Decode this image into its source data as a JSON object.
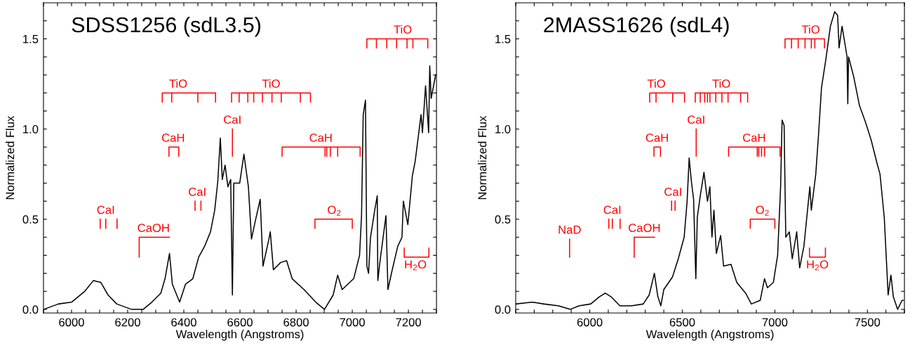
{
  "chart_data": [
    {
      "type": "line",
      "title": "SDSS1256 (sdL3.5)",
      "xlabel": "Wavelength (Angstroms)",
      "ylabel": "Normalized Flux",
      "xlim": [
        5900,
        7300
      ],
      "ylim": [
        -0.02,
        1.7
      ],
      "xticks": [
        {
          "value": 5900,
          "label": null
        },
        {
          "value": 5950,
          "label": null
        },
        6000,
        {
          "value": 6050,
          "label": null
        },
        {
          "value": 6100,
          "label": null
        },
        {
          "value": 6150,
          "label": null
        },
        6200,
        {
          "value": 6250,
          "label": null
        },
        {
          "value": 6300,
          "label": null
        },
        {
          "value": 6350,
          "label": null
        },
        6400,
        {
          "value": 6450,
          "label": null
        },
        {
          "value": 6500,
          "label": null
        },
        {
          "value": 6550,
          "label": null
        },
        6600,
        {
          "value": 6650,
          "label": null
        },
        {
          "value": 6700,
          "label": null
        },
        {
          "value": 6750,
          "label": null
        },
        6800,
        {
          "value": 6850,
          "label": null
        },
        {
          "value": 6900,
          "label": null
        },
        {
          "value": 6950,
          "label": null
        },
        7000,
        {
          "value": 7050,
          "label": null
        },
        {
          "value": 7100,
          "label": null
        },
        {
          "value": 7150,
          "label": null
        },
        7200,
        {
          "value": 7250,
          "label": null
        },
        {
          "value": 7300,
          "label": null
        }
      ],
      "yticks": [
        {
          "value": 0,
          "label": "0.0"
        },
        {
          "value": 0.1,
          "label": null
        },
        {
          "value": 0.2,
          "label": null
        },
        {
          "value": 0.3,
          "label": null
        },
        {
          "value": 0.4,
          "label": null
        },
        {
          "value": 0.5,
          "label": "0.5"
        },
        {
          "value": 0.6,
          "label": null
        },
        {
          "value": 0.7,
          "label": null
        },
        {
          "value": 0.8,
          "label": null
        },
        {
          "value": 0.9,
          "label": null
        },
        {
          "value": 1.0,
          "label": "1.0"
        },
        {
          "value": 1.1,
          "label": null
        },
        {
          "value": 1.2,
          "label": null
        },
        {
          "value": 1.3,
          "label": null
        },
        {
          "value": 1.4,
          "label": null
        },
        {
          "value": 1.5,
          "label": "1.5"
        },
        {
          "value": 1.6,
          "label": null
        }
      ],
      "series": [
        {
          "color": "#000000",
          "x": [
            5901,
            5953,
            6000,
            6047,
            6078,
            6104,
            6130,
            6161,
            6214,
            6255,
            6286,
            6318,
            6333,
            6349,
            6359,
            6385,
            6406,
            6432,
            6453,
            6474,
            6495,
            6510,
            6521,
            6530,
            6537,
            6547,
            6557,
            6567,
            6573,
            6578,
            6599,
            6614,
            6630,
            6641,
            6656,
            6672,
            6682,
            6703,
            6708,
            6719,
            6745,
            6766,
            6786,
            6828,
            6870,
            6901,
            6932,
            6948,
            6964,
            7005,
            7026,
            7033,
            7039,
            7047,
            7052,
            7058,
            7065,
            7080,
            7089,
            7091,
            7099,
            7120,
            7127,
            7141,
            7162,
            7177,
            7182,
            7198,
            7214,
            7224,
            7245,
            7250,
            7261,
            7272,
            7276,
            7281,
            7297
          ],
          "values": [
            0.0,
            0.03,
            0.04,
            0.1,
            0.16,
            0.15,
            0.08,
            0.03,
            0.0,
            0.0,
            0.04,
            0.09,
            0.17,
            0.31,
            0.14,
            0.04,
            0.14,
            0.17,
            0.29,
            0.35,
            0.43,
            0.55,
            0.71,
            0.95,
            0.72,
            0.8,
            0.68,
            0.72,
            0.08,
            0.7,
            0.7,
            0.86,
            0.68,
            0.39,
            0.5,
            0.61,
            0.24,
            0.39,
            0.43,
            0.22,
            0.26,
            0.27,
            0.17,
            0.11,
            0.04,
            0.0,
            0.08,
            0.19,
            0.11,
            0.17,
            0.3,
            0.52,
            1.08,
            1.16,
            0.24,
            0.2,
            0.4,
            0.55,
            0.63,
            0.16,
            0.27,
            0.52,
            0.11,
            0.21,
            0.35,
            0.4,
            0.6,
            0.47,
            0.74,
            0.82,
            1.08,
            0.98,
            1.24,
            0.98,
            1.35,
            1.17,
            1.3
          ]
        },
        {
          "color": "#ff0000",
          "x": [
            7052,
            7052,
            7269,
            7269,
            null,
            7086,
            7086,
            null,
            7123,
            7123,
            null,
            7158,
            7158,
            null,
            7195,
            7195,
            null,
            7216,
            7216
          ],
          "values": [
            1.45,
            1.5,
            1.5,
            1.45,
            null,
            1.5,
            1.45,
            null,
            1.5,
            1.45,
            null,
            1.5,
            1.45,
            null,
            1.5,
            1.45,
            null,
            1.5,
            1.45
          ]
        },
        {
          "color": "#ff0000",
          "x": [
            6323,
            6323,
            6513,
            6513,
            null,
            6357,
            6357,
            null,
            6450,
            6450
          ],
          "values": [
            1.15,
            1.2,
            1.2,
            1.15,
            null,
            1.2,
            1.15,
            null,
            1.2,
            1.15
          ]
        },
        {
          "color": "#ff0000",
          "x": [
            6570,
            6570,
            6851,
            6851,
            null,
            6597,
            6597,
            null,
            6628,
            6628,
            null,
            6649,
            6649,
            null,
            6680,
            6680,
            null,
            6714,
            6714,
            null,
            6747,
            6747,
            null,
            6815,
            6815
          ],
          "values": [
            1.15,
            1.2,
            1.2,
            1.15,
            null,
            1.2,
            1.15,
            null,
            1.2,
            1.15,
            null,
            1.2,
            1.15,
            null,
            1.2,
            1.15,
            null,
            1.2,
            1.15,
            null,
            1.2,
            1.15,
            null,
            1.2,
            1.15
          ]
        },
        {
          "color": "#ff0000",
          "x": [
            6573,
            6573
          ],
          "values": [
            1.0,
            0.85
          ]
        },
        {
          "color": "#ff0000",
          "x": [
            6347,
            6347,
            6382,
            6382
          ],
          "values": [
            0.85,
            0.9,
            0.9,
            0.85
          ]
        },
        {
          "color": "#ff0000",
          "x": [
            6750,
            6750,
            7028,
            7028,
            null,
            6903,
            6903,
            null,
            6909,
            6909,
            null,
            6922,
            6922,
            null,
            6948,
            6948
          ],
          "values": [
            0.85,
            0.9,
            0.9,
            0.85,
            null,
            0.9,
            0.85,
            null,
            0.9,
            0.85,
            null,
            0.9,
            0.85,
            null,
            0.9,
            0.85
          ]
        },
        {
          "color": "#ff0000",
          "x": [
            6440,
            6440,
            null,
            6461,
            6461
          ],
          "values": [
            0.6,
            0.55,
            null,
            0.6,
            0.55
          ]
        },
        {
          "color": "#ff0000",
          "x": [
            6102,
            6102,
            null,
            6122,
            6122,
            null,
            6162,
            6162
          ],
          "values": [
            0.5,
            0.45,
            null,
            0.5,
            0.45,
            null,
            0.5,
            0.45
          ]
        },
        {
          "color": "#ff0000",
          "x": [
            6241,
            6241,
            6349
          ],
          "values": [
            0.29,
            0.4,
            0.4
          ]
        },
        {
          "color": "#ff0000",
          "x": [
            6867,
            6867,
            7000,
            7000
          ],
          "values": [
            0.45,
            0.5,
            0.5,
            0.45
          ]
        },
        {
          "color": "#ff0000",
          "x": [
            7185,
            7185,
            7273,
            7273
          ],
          "values": [
            0.34,
            0.29,
            0.29,
            0.34
          ]
        }
      ],
      "annotations": [
        {
          "text": "TiO",
          "x": 7180,
          "y": 1.5
        },
        {
          "text": "TiO",
          "x": 6380,
          "y": 1.2
        },
        {
          "text": "TiO",
          "x": 6711,
          "y": 1.2
        },
        {
          "text": "CaI",
          "x": 6573,
          "y": 1.0
        },
        {
          "text": "CaH",
          "x": 6362,
          "y": 0.9
        },
        {
          "text": "CaH",
          "x": 6888,
          "y": 0.9
        },
        {
          "text": "CaI",
          "x": 6448,
          "y": 0.6
        },
        {
          "text": "CaI",
          "x": 6122,
          "y": 0.5
        },
        {
          "text": "CaOH",
          "x": 6292,
          "y": 0.4
        },
        {
          "text": "O$_{2}$",
          "x": 6936,
          "y": 0.5
        },
        {
          "text": "H$_{2}$O",
          "x": 7225,
          "y": 0.29
        }
      ]
    },
    {
      "type": "line",
      "title": "2MASS1626 (sdL4)",
      "xlabel": "Wavelength (Angstroms)",
      "ylabel": "Normalized Flux",
      "xlim": [
        5600,
        7700
      ],
      "ylim": [
        -0.02,
        1.7
      ],
      "xticks": [
        {
          "value": 5600,
          "label": null
        },
        {
          "value": 5700,
          "label": null
        },
        {
          "value": 5800,
          "label": null
        },
        {
          "value": 5900,
          "label": null
        },
        6000,
        {
          "value": 6100,
          "label": null
        },
        {
          "value": 6200,
          "label": null
        },
        {
          "value": 6300,
          "label": null
        },
        {
          "value": 6400,
          "label": null
        },
        6500,
        {
          "value": 6600,
          "label": null
        },
        {
          "value": 6700,
          "label": null
        },
        {
          "value": 6800,
          "label": null
        },
        {
          "value": 6900,
          "label": null
        },
        7000,
        {
          "value": 7100,
          "label": null
        },
        {
          "value": 7200,
          "label": null
        },
        {
          "value": 7300,
          "label": null
        },
        {
          "value": 7400,
          "label": null
        },
        7500,
        {
          "value": 7600,
          "label": null
        },
        {
          "value": 7700,
          "label": null
        }
      ],
      "yticks": [
        {
          "value": 0,
          "label": "0.0"
        },
        {
          "value": 0.1,
          "label": null
        },
        {
          "value": 0.2,
          "label": null
        },
        {
          "value": 0.3,
          "label": null
        },
        {
          "value": 0.4,
          "label": null
        },
        {
          "value": 0.5,
          "label": "0.5"
        },
        {
          "value": 0.6,
          "label": null
        },
        {
          "value": 0.7,
          "label": null
        },
        {
          "value": 0.8,
          "label": null
        },
        {
          "value": 0.9,
          "label": null
        },
        {
          "value": 1.0,
          "label": "1.0"
        },
        {
          "value": 1.1,
          "label": null
        },
        {
          "value": 1.2,
          "label": null
        },
        {
          "value": 1.3,
          "label": null
        },
        {
          "value": 1.4,
          "label": null
        },
        {
          "value": 1.5,
          "label": "1.5"
        },
        {
          "value": 1.6,
          "label": null
        }
      ],
      "series": [
        {
          "color": "#000000",
          "x": [
            5602,
            5689,
            5752,
            5831,
            5894,
            5942,
            6005,
            6052,
            6084,
            6115,
            6163,
            6226,
            6289,
            6321,
            6349,
            6368,
            6384,
            6400,
            6447,
            6478,
            6510,
            6526,
            6537,
            6549,
            6561,
            6573,
            6581,
            6597,
            6617,
            6636,
            6649,
            6660,
            6671,
            6684,
            6707,
            6723,
            6763,
            6794,
            6842,
            6873,
            6921,
            6944,
            6960,
            6992,
            7015,
            7031,
            7039,
            7050,
            7055,
            7059,
            7078,
            7094,
            7118,
            7134,
            7157,
            7189,
            7197,
            7221,
            7236,
            7252,
            7276,
            7300,
            7323,
            7339,
            7347,
            7363,
            7390,
            7394,
            7398,
            7426,
            7457,
            7489,
            7520,
            7552,
            7568,
            7591,
            7612,
            7627,
            7640,
            7663,
            7687,
            7694
          ],
          "values": [
            0.03,
            0.04,
            0.03,
            0.02,
            0.0,
            0.02,
            0.03,
            0.07,
            0.09,
            0.07,
            0.02,
            0.02,
            0.03,
            0.08,
            0.2,
            0.07,
            0.02,
            0.11,
            0.18,
            0.28,
            0.4,
            0.6,
            0.84,
            0.71,
            0.61,
            0.17,
            0.51,
            0.63,
            0.76,
            0.6,
            0.68,
            0.4,
            0.55,
            0.31,
            0.41,
            0.24,
            0.25,
            0.15,
            0.09,
            0.03,
            0.05,
            0.17,
            0.12,
            0.15,
            0.3,
            0.68,
            1.05,
            1.02,
            0.67,
            0.4,
            0.43,
            0.28,
            0.43,
            0.23,
            0.35,
            0.68,
            0.55,
            0.75,
            0.97,
            1.23,
            1.39,
            1.57,
            1.65,
            1.63,
            1.45,
            1.57,
            1.4,
            1.14,
            1.4,
            1.29,
            1.13,
            1.04,
            0.94,
            0.81,
            0.75,
            0.51,
            0.08,
            0.19,
            0.07,
            0.0,
            0.05,
            0.05
          ]
        },
        {
          "color": "#ff0000",
          "x": [
            7055,
            7055,
            7268,
            7268,
            null,
            7090,
            7090,
            null,
            7126,
            7126,
            null,
            7163,
            7163,
            null,
            7197,
            7197,
            null,
            7216,
            7216
          ],
          "values": [
            1.45,
            1.5,
            1.5,
            1.45,
            null,
            1.5,
            1.45,
            null,
            1.5,
            1.45,
            null,
            1.5,
            1.45,
            null,
            1.5,
            1.45,
            null,
            1.5,
            1.45
          ]
        },
        {
          "color": "#ff0000",
          "x": [
            6324,
            6324,
            6512,
            6512,
            null,
            6358,
            6358,
            null,
            6448,
            6448
          ],
          "values": [
            1.15,
            1.2,
            1.2,
            1.15,
            null,
            1.2,
            1.15,
            null,
            1.2,
            1.15
          ]
        },
        {
          "color": "#ff0000",
          "x": [
            6570,
            6570,
            6853,
            6853,
            null,
            6597,
            6597,
            null,
            6621,
            6621,
            null,
            6636,
            6636,
            null,
            6649,
            6649,
            null,
            6681,
            6681,
            null,
            6714,
            6714,
            null,
            6747,
            6747,
            null,
            6815,
            6815
          ],
          "values": [
            1.15,
            1.2,
            1.2,
            1.15,
            null,
            1.2,
            1.15,
            null,
            1.2,
            1.15,
            null,
            1.2,
            1.15,
            null,
            1.2,
            1.15,
            null,
            1.2,
            1.15,
            null,
            1.2,
            1.15,
            null,
            1.2,
            1.15,
            null,
            1.2,
            1.15
          ]
        },
        {
          "color": "#ff0000",
          "x": [
            6575,
            6575
          ],
          "values": [
            1.0,
            0.85
          ]
        },
        {
          "color": "#ff0000",
          "x": [
            6347,
            6347,
            6382,
            6382
          ],
          "values": [
            0.85,
            0.9,
            0.9,
            0.85
          ]
        },
        {
          "color": "#ff0000",
          "x": [
            6750,
            6750,
            7028,
            7028,
            null,
            6905,
            6905,
            null,
            6913,
            6913,
            null,
            6928,
            6928,
            null,
            6944,
            6944
          ],
          "values": [
            0.85,
            0.9,
            0.9,
            0.85,
            null,
            0.9,
            0.85,
            null,
            0.9,
            0.85,
            null,
            0.9,
            0.85,
            null,
            0.9,
            0.85
          ]
        },
        {
          "color": "#ff0000",
          "x": [
            6442,
            6442,
            null,
            6461,
            6461
          ],
          "values": [
            0.6,
            0.55,
            null,
            0.6,
            0.55
          ]
        },
        {
          "color": "#ff0000",
          "x": [
            6103,
            6103,
            null,
            6122,
            6122,
            null,
            6164,
            6164
          ],
          "values": [
            0.5,
            0.45,
            null,
            0.5,
            0.45,
            null,
            0.5,
            0.45
          ]
        },
        {
          "color": "#ff0000",
          "x": [
            5891,
            5891
          ],
          "values": [
            0.39,
            0.29
          ]
        },
        {
          "color": "#ff0000",
          "x": [
            6240,
            6240,
            6350
          ],
          "values": [
            0.29,
            0.4,
            0.4
          ]
        },
        {
          "color": "#ff0000",
          "x": [
            6867,
            6867,
            7000,
            7000
          ],
          "values": [
            0.45,
            0.5,
            0.5,
            0.45
          ]
        },
        {
          "color": "#ff0000",
          "x": [
            7187,
            7187,
            7273,
            7273
          ],
          "values": [
            0.34,
            0.29,
            0.29,
            0.34
          ]
        }
      ],
      "annotations": [
        {
          "text": "TiO",
          "x": 7194,
          "y": 1.5
        },
        {
          "text": "TiO",
          "x": 6360,
          "y": 1.2
        },
        {
          "text": "TiO",
          "x": 6711,
          "y": 1.2
        },
        {
          "text": "CaI",
          "x": 6575,
          "y": 1.0
        },
        {
          "text": "CaH",
          "x": 6364,
          "y": 0.9
        },
        {
          "text": "CaH",
          "x": 6888,
          "y": 0.9
        },
        {
          "text": "CaI",
          "x": 6450,
          "y": 0.6
        },
        {
          "text": "CaI",
          "x": 6122,
          "y": 0.5
        },
        {
          "text": "NaD",
          "x": 5891,
          "y": 0.39
        },
        {
          "text": "CaOH",
          "x": 6295,
          "y": 0.4
        },
        {
          "text": "O$_{2}$",
          "x": 6933,
          "y": 0.5
        },
        {
          "text": "H$_{2}$O",
          "x": 7230,
          "y": 0.29
        }
      ]
    }
  ]
}
